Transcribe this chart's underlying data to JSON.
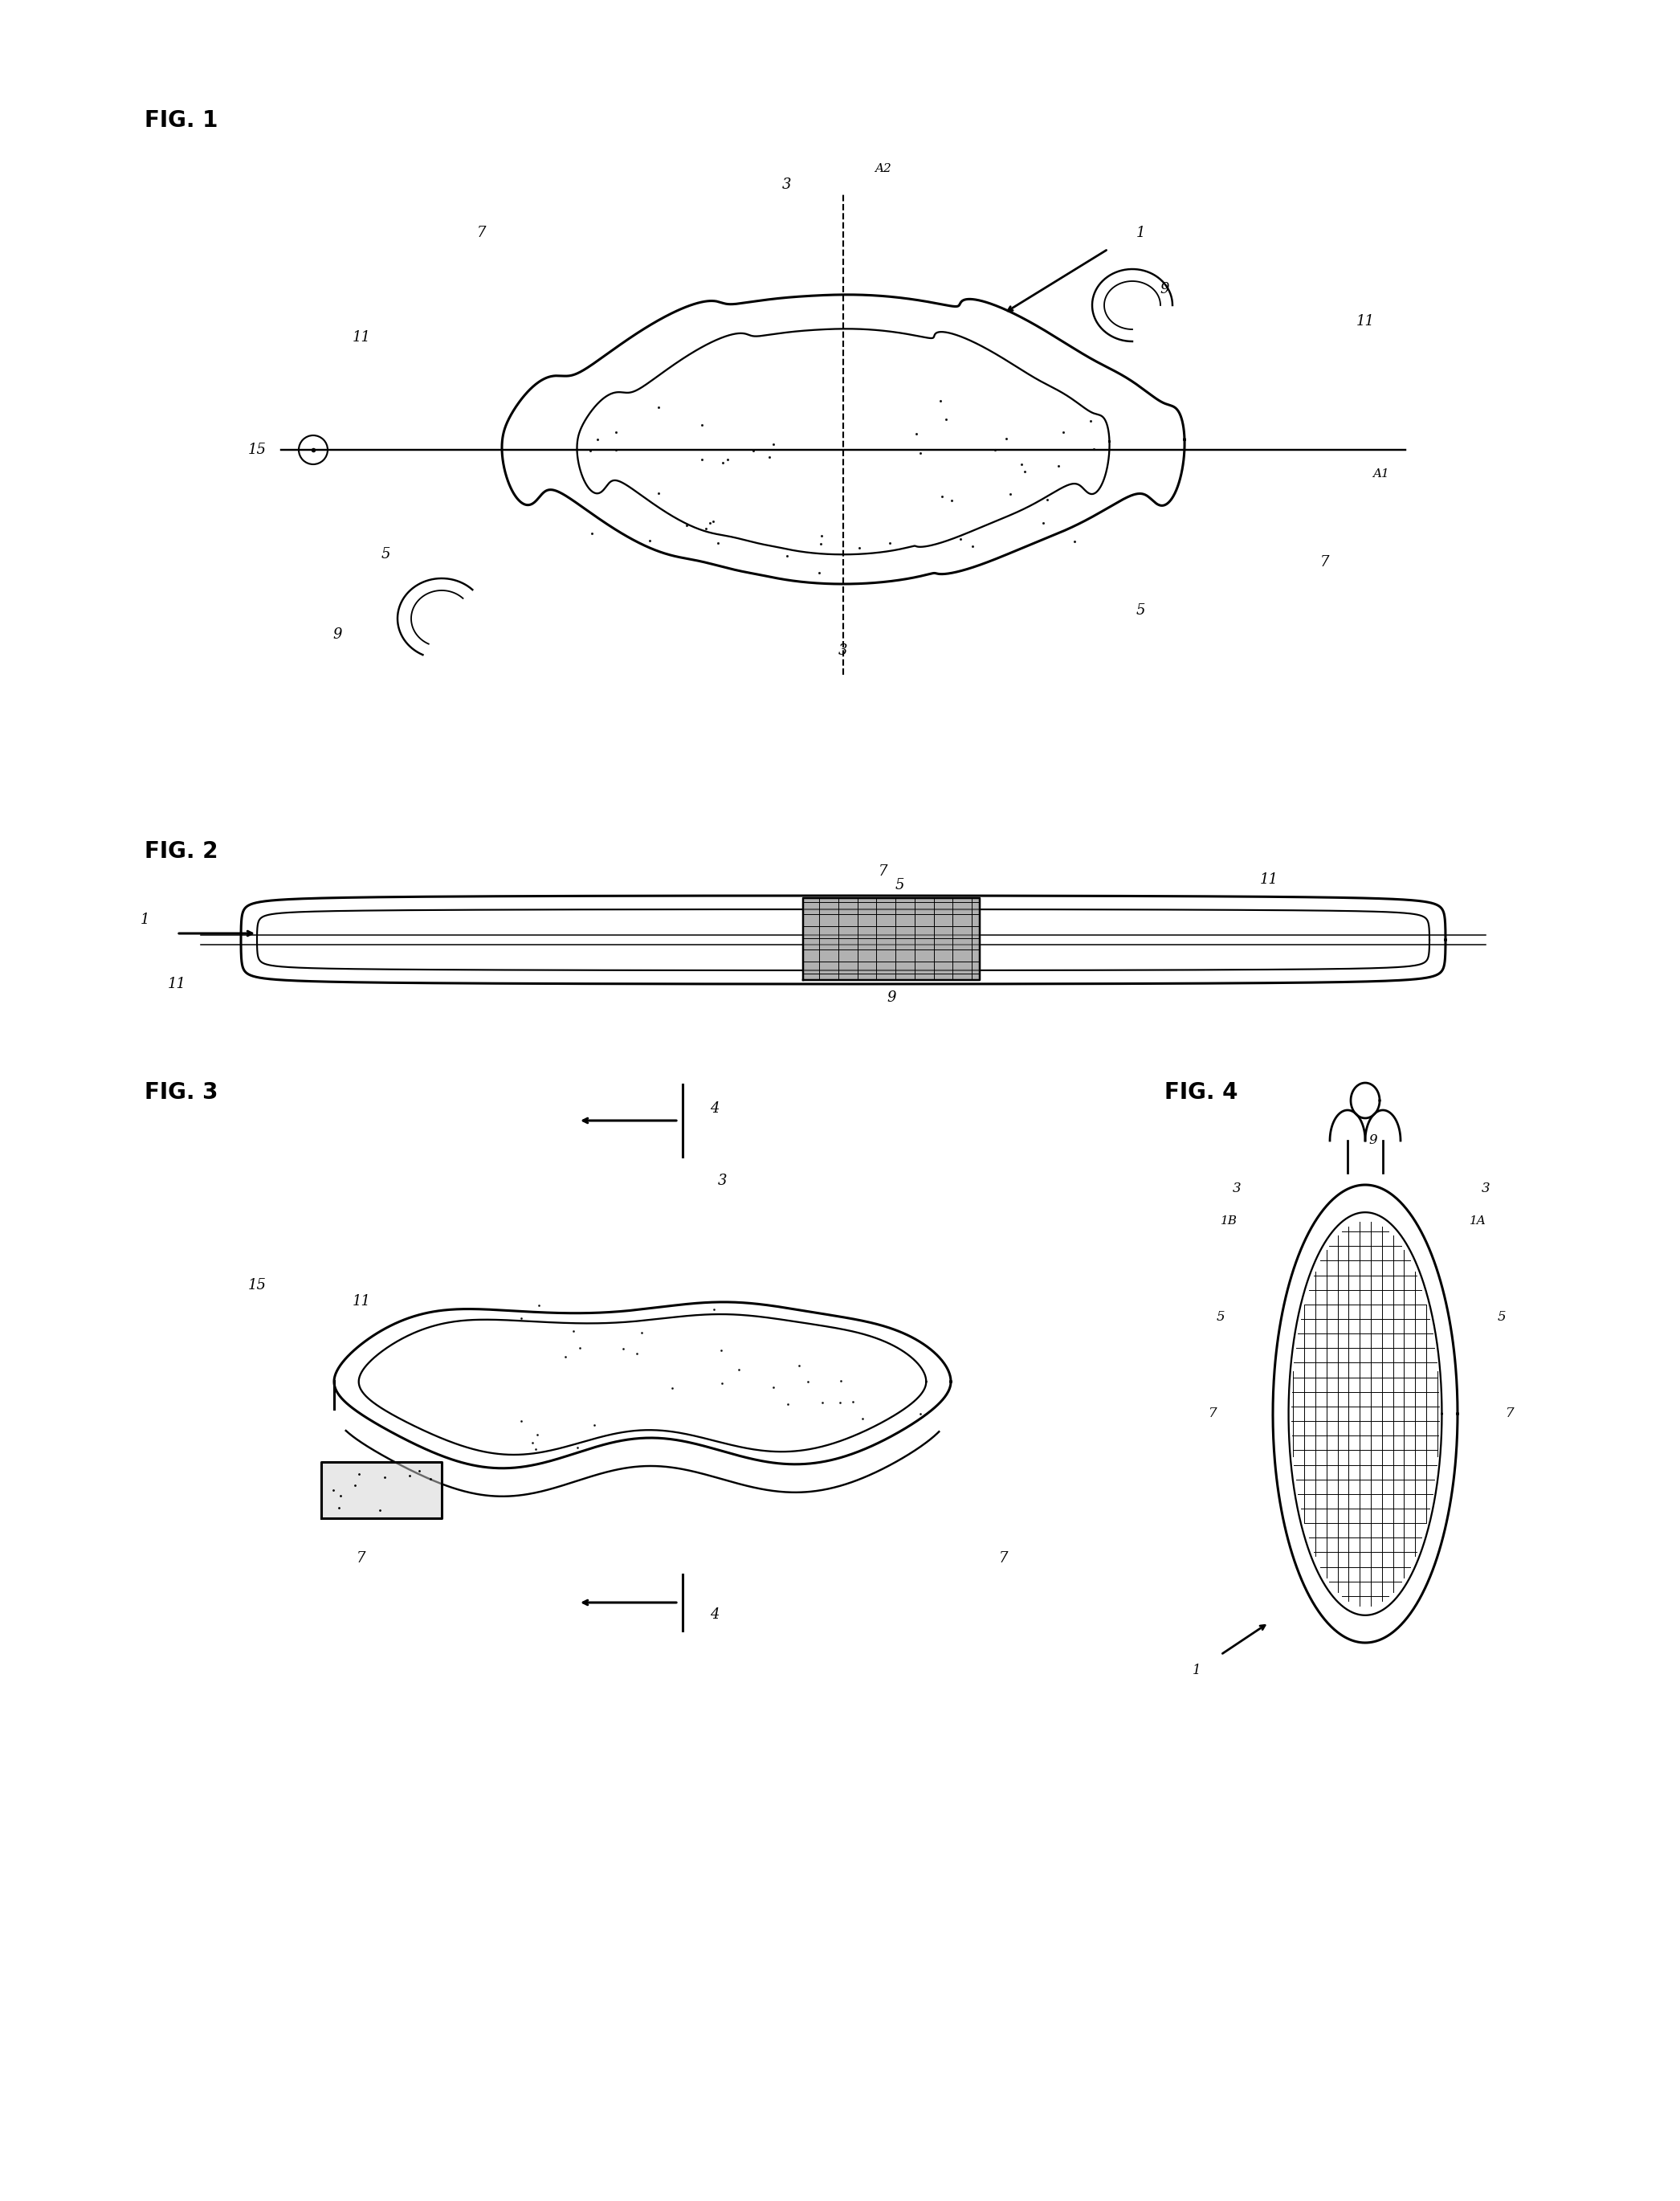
{
  "bg_color": "#ffffff",
  "line_color": "#000000",
  "lw": 2.2,
  "fig1_label": "FIG. 1",
  "fig2_label": "FIG. 2",
  "fig3_label": "FIG. 3",
  "fig4_label": "FIG. 4"
}
